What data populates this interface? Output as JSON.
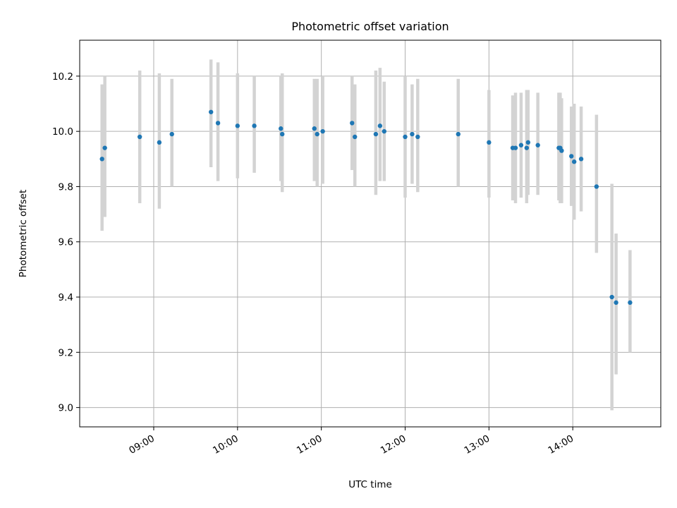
{
  "chart_data": {
    "type": "scatter",
    "title": "Photometric offset variation",
    "xlabel": "UTC time",
    "ylabel": "Photometric offset",
    "xlim": [
      "08:07",
      "15:03"
    ],
    "ylim": [
      8.93,
      10.33
    ],
    "yticks": [
      9.0,
      9.2,
      9.4,
      9.6,
      9.8,
      10.0,
      10.2
    ],
    "ytick_labels": [
      "9.0",
      "9.2",
      "9.4",
      "9.6",
      "9.8",
      "10.0",
      "10.2"
    ],
    "xticks": [
      "09:00",
      "10:00",
      "11:00",
      "12:00",
      "13:00",
      "14:00"
    ],
    "xtick_labels": [
      "09:00",
      "10:00",
      "11:00",
      "12:00",
      "13:00",
      "14:00"
    ],
    "grid": true,
    "marker_color": "#1f77b4",
    "errorbar_color": "#d3d3d3",
    "points": [
      {
        "x": "08:23",
        "y": 9.9,
        "err_low": 9.64,
        "err_high": 10.17
      },
      {
        "x": "08:25",
        "y": 9.94,
        "err_low": 9.69,
        "err_high": 10.2
      },
      {
        "x": "08:50",
        "y": 9.98,
        "err_low": 9.74,
        "err_high": 10.22
      },
      {
        "x": "09:04",
        "y": 9.96,
        "err_low": 9.72,
        "err_high": 10.21
      },
      {
        "x": "09:13",
        "y": 9.99,
        "err_low": 9.8,
        "err_high": 10.19
      },
      {
        "x": "09:41",
        "y": 10.07,
        "err_low": 9.87,
        "err_high": 10.26
      },
      {
        "x": "09:46",
        "y": 10.03,
        "err_low": 9.82,
        "err_high": 10.25
      },
      {
        "x": "10:00",
        "y": 10.02,
        "err_low": 9.83,
        "err_high": 10.21
      },
      {
        "x": "10:12",
        "y": 10.02,
        "err_low": 9.85,
        "err_high": 10.2
      },
      {
        "x": "10:31",
        "y": 10.01,
        "err_low": 9.82,
        "err_high": 10.2
      },
      {
        "x": "10:32",
        "y": 9.99,
        "err_low": 9.78,
        "err_high": 10.21
      },
      {
        "x": "10:55",
        "y": 10.01,
        "err_low": 9.82,
        "err_high": 10.19
      },
      {
        "x": "10:57",
        "y": 9.99,
        "err_low": 9.8,
        "err_high": 10.19
      },
      {
        "x": "11:01",
        "y": 10.0,
        "err_low": 9.81,
        "err_high": 10.2
      },
      {
        "x": "11:22",
        "y": 10.03,
        "err_low": 9.86,
        "err_high": 10.2
      },
      {
        "x": "11:24",
        "y": 9.98,
        "err_low": 9.8,
        "err_high": 10.17
      },
      {
        "x": "11:39",
        "y": 9.99,
        "err_low": 9.77,
        "err_high": 10.22
      },
      {
        "x": "11:42",
        "y": 10.02,
        "err_low": 9.82,
        "err_high": 10.23
      },
      {
        "x": "11:45",
        "y": 10.0,
        "err_low": 9.82,
        "err_high": 10.18
      },
      {
        "x": "12:00",
        "y": 9.98,
        "err_low": 9.76,
        "err_high": 10.2
      },
      {
        "x": "12:05",
        "y": 9.99,
        "err_low": 9.81,
        "err_high": 10.17
      },
      {
        "x": "12:09",
        "y": 9.98,
        "err_low": 9.78,
        "err_high": 10.19
      },
      {
        "x": "12:38",
        "y": 9.99,
        "err_low": 9.8,
        "err_high": 10.19
      },
      {
        "x": "13:00",
        "y": 9.96,
        "err_low": 9.76,
        "err_high": 10.15
      },
      {
        "x": "13:17",
        "y": 9.94,
        "err_low": 9.75,
        "err_high": 10.13
      },
      {
        "x": "13:19",
        "y": 9.94,
        "err_low": 9.74,
        "err_high": 10.14
      },
      {
        "x": "13:23",
        "y": 9.95,
        "err_low": 9.76,
        "err_high": 10.14
      },
      {
        "x": "13:27",
        "y": 9.94,
        "err_low": 9.74,
        "err_high": 10.15
      },
      {
        "x": "13:28",
        "y": 9.96,
        "err_low": 9.77,
        "err_high": 10.15
      },
      {
        "x": "13:35",
        "y": 9.95,
        "err_low": 9.77,
        "err_high": 10.14
      },
      {
        "x": "13:50",
        "y": 9.94,
        "err_low": 9.75,
        "err_high": 10.14
      },
      {
        "x": "13:51",
        "y": 9.94,
        "err_low": 9.74,
        "err_high": 10.14
      },
      {
        "x": "13:52",
        "y": 9.93,
        "err_low": 9.74,
        "err_high": 10.12
      },
      {
        "x": "13:59",
        "y": 9.91,
        "err_low": 9.73,
        "err_high": 10.09
      },
      {
        "x": "14:01",
        "y": 9.89,
        "err_low": 9.68,
        "err_high": 10.1
      },
      {
        "x": "14:06",
        "y": 9.9,
        "err_low": 9.71,
        "err_high": 10.09
      },
      {
        "x": "14:17",
        "y": 9.8,
        "err_low": 9.56,
        "err_high": 10.06
      },
      {
        "x": "14:28",
        "y": 9.4,
        "err_low": 8.99,
        "err_high": 9.81
      },
      {
        "x": "14:31",
        "y": 9.38,
        "err_low": 9.12,
        "err_high": 9.63
      },
      {
        "x": "14:41",
        "y": 9.38,
        "err_low": 9.2,
        "err_high": 9.57
      }
    ]
  }
}
